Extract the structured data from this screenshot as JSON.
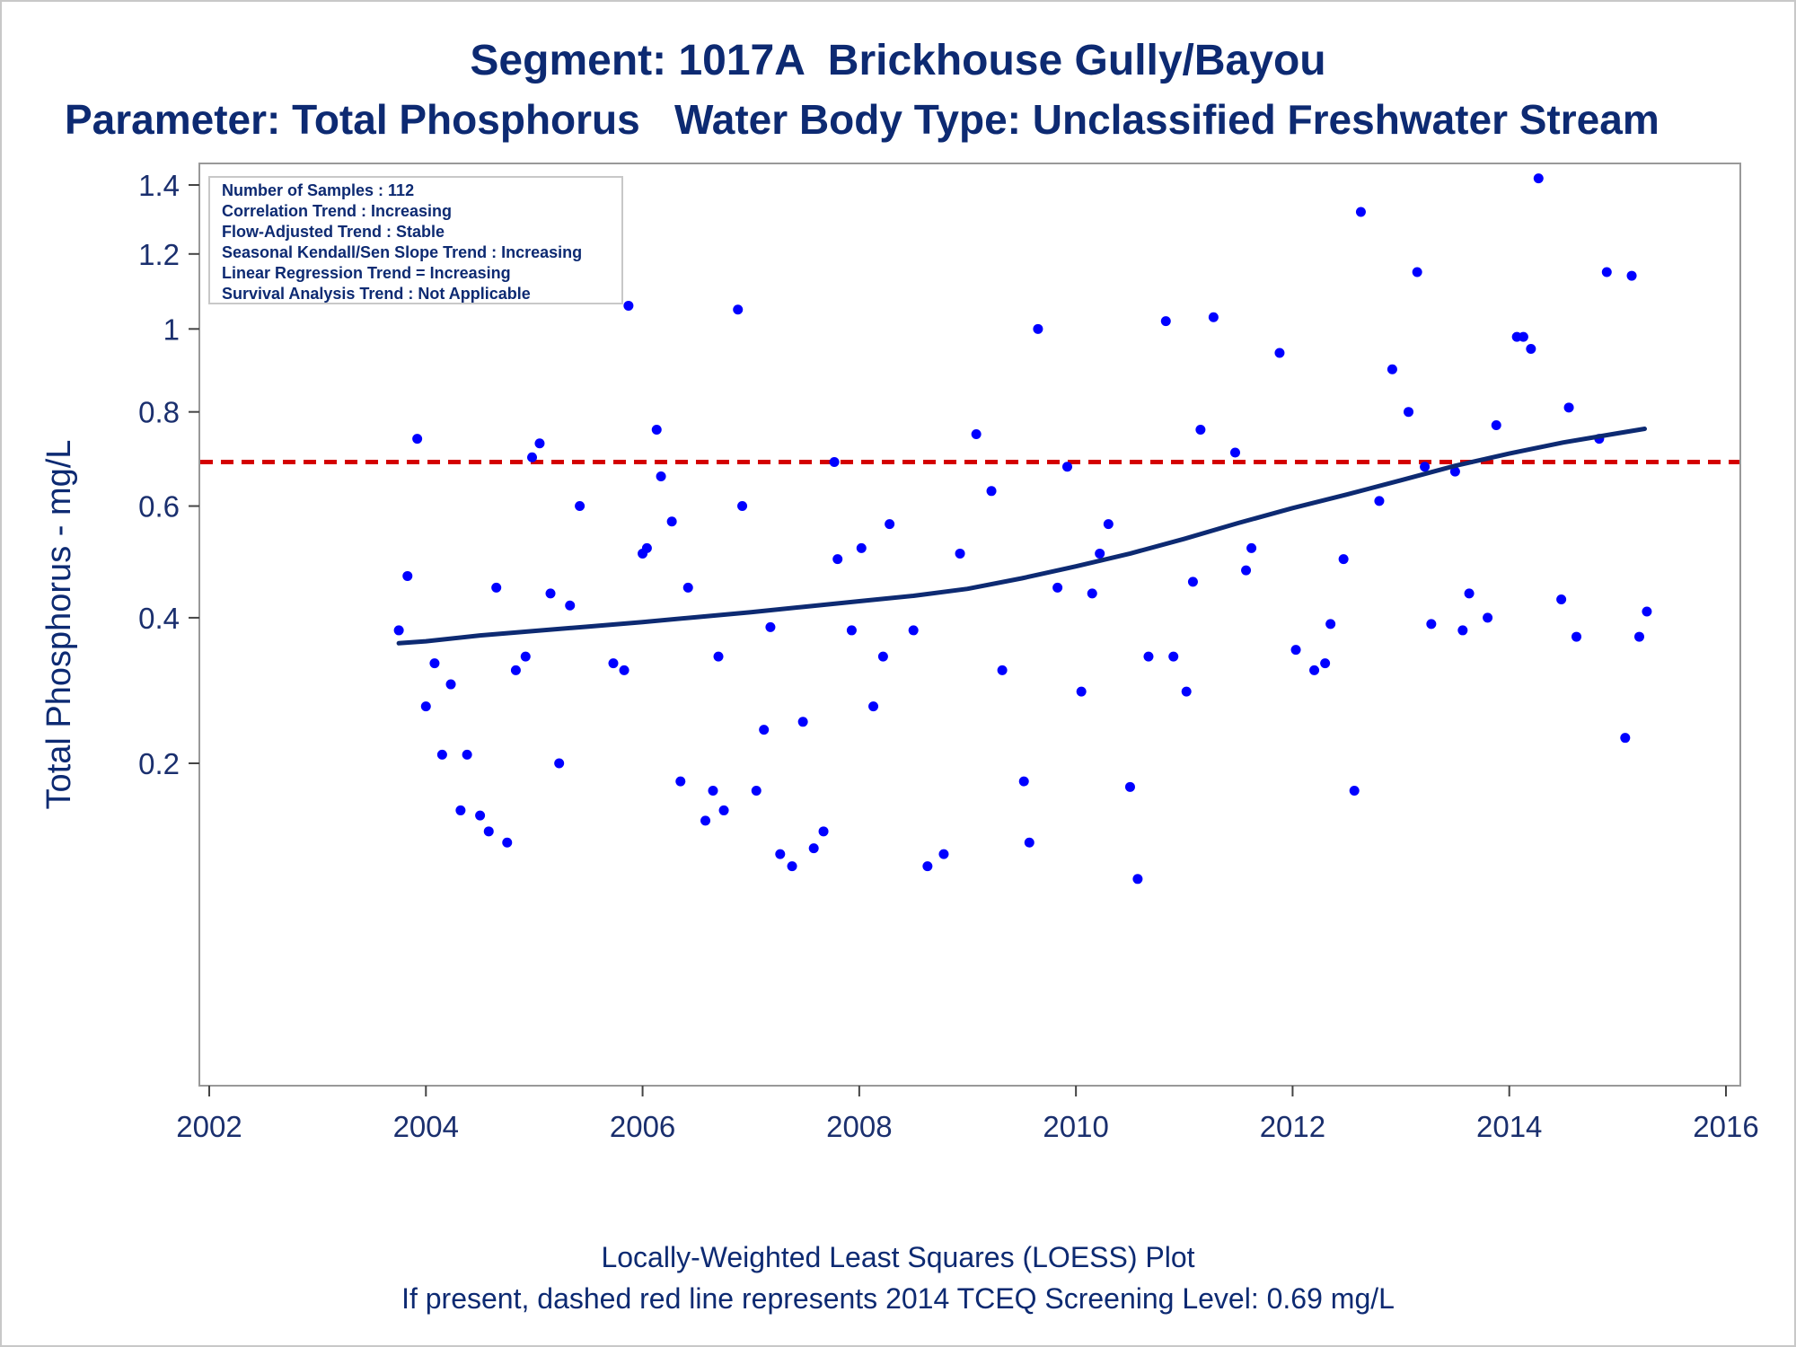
{
  "header": {
    "title": "Segment: 1017A  Brickhouse Gully/Bayou",
    "subtitle": "Parameter: Total Phosphorus   Water Body Type: Unclassified Freshwater Stream"
  },
  "stats_box": {
    "lines": [
      "Number of Samples : 112",
      "Correlation Trend : Increasing",
      "Flow-Adjusted Trend : Stable",
      "Seasonal Kendall/Sen Slope Trend : Increasing",
      "Linear Regression Trend = Increasing",
      "Survival Analysis Trend : Not Applicable"
    ]
  },
  "footer": {
    "line1": "Locally-Weighted Least Squares (LOESS) Plot",
    "line2": "If present, dashed red line represents 2014 TCEQ Screening Level: 0.69 mg/L"
  },
  "colors": {
    "title": "#0d2a72",
    "points": "#0000ff",
    "loess": "#0d2a72",
    "screening": "#d40000",
    "frame": "#999999"
  },
  "chart_data": {
    "type": "scatter",
    "xlabel": "",
    "ylabel": "Total Phosphorus - mg/L",
    "xlim": [
      2002,
      2016
    ],
    "ylim": [
      0.09,
      1.45
    ],
    "y_scale": "sqrt",
    "x_ticks": [
      2002,
      2004,
      2006,
      2008,
      2010,
      2012,
      2014,
      2016
    ],
    "y_ticks": [
      0.2,
      0.4,
      0.6,
      0.8,
      1,
      1.2,
      1.4
    ],
    "y_tick_labels": [
      "0.2",
      "0.4",
      "0.6",
      "0.8",
      "1",
      "1.2",
      "1.4"
    ],
    "reference_line": {
      "y": 0.69,
      "style": "dashed",
      "color": "#d40000"
    },
    "series": [
      {
        "type": "scatter",
        "x": [
          2003.75,
          2003.83,
          2003.92,
          2004.0,
          2004.08,
          2004.15,
          2004.23,
          2004.32,
          2004.38,
          2004.5,
          2004.58,
          2004.65,
          2004.75,
          2004.83,
          2004.92,
          2004.98,
          2005.05,
          2005.15,
          2005.23,
          2005.33,
          2005.42,
          2005.73,
          2005.83,
          2005.87,
          2006.0,
          2006.04,
          2006.13,
          2006.17,
          2006.27,
          2006.35,
          2006.42,
          2006.58,
          2006.65,
          2006.7,
          2006.75,
          2006.88,
          2006.92,
          2007.05,
          2007.12,
          2007.18,
          2007.27,
          2007.38,
          2007.48,
          2007.58,
          2007.67,
          2007.77,
          2007.8,
          2007.93,
          2008.02,
          2008.13,
          2008.22,
          2008.28,
          2008.5,
          2008.63,
          2008.78,
          2008.93,
          2009.08,
          2009.22,
          2009.32,
          2009.52,
          2009.57,
          2009.65,
          2009.83,
          2009.92,
          2010.05,
          2010.15,
          2010.22,
          2010.3,
          2010.5,
          2010.57,
          2010.67,
          2010.83,
          2010.9,
          2011.02,
          2011.08,
          2011.15,
          2011.27,
          2011.47,
          2011.57,
          2011.62,
          2011.88,
          2012.03,
          2012.2,
          2012.3,
          2012.35,
          2012.47,
          2012.57,
          2012.63,
          2012.8,
          2012.92,
          2013.07,
          2013.15,
          2013.22,
          2013.28,
          2013.5,
          2013.57,
          2013.63,
          2013.8,
          2013.88,
          2014.07,
          2014.13,
          2014.2,
          2014.27,
          2014.48,
          2014.55,
          2014.62,
          2014.83,
          2014.9,
          2015.07,
          2015.13,
          2015.2,
          2015.27
        ],
        "y": [
          0.38,
          0.47,
          0.74,
          0.27,
          0.33,
          0.21,
          0.3,
          0.15,
          0.21,
          0.145,
          0.13,
          0.45,
          0.12,
          0.32,
          0.34,
          0.7,
          0.73,
          0.44,
          0.2,
          0.42,
          0.6,
          0.33,
          0.32,
          1.06,
          0.51,
          0.52,
          0.76,
          0.66,
          0.57,
          0.18,
          0.45,
          0.14,
          0.17,
          0.34,
          0.15,
          1.05,
          0.6,
          0.17,
          0.24,
          0.385,
          0.11,
          0.1,
          0.25,
          0.115,
          0.13,
          0.69,
          0.5,
          0.38,
          0.52,
          0.27,
          0.34,
          0.565,
          0.38,
          0.1,
          0.11,
          0.51,
          0.75,
          0.63,
          0.32,
          0.18,
          0.12,
          1.0,
          0.45,
          0.68,
          0.29,
          0.44,
          0.51,
          0.565,
          0.174,
          0.09,
          0.34,
          1.02,
          0.34,
          0.29,
          0.46,
          0.76,
          1.03,
          0.71,
          0.48,
          0.52,
          0.94,
          0.35,
          0.32,
          0.33,
          0.39,
          0.5,
          0.17,
          1.32,
          0.61,
          0.9,
          0.8,
          1.15,
          0.68,
          0.39,
          0.67,
          0.38,
          0.44,
          0.4,
          0.77,
          0.98,
          0.98,
          0.95,
          1.42,
          0.43,
          0.81,
          0.37,
          0.74,
          1.15,
          0.23,
          1.14,
          0.37,
          0.41
        ]
      },
      {
        "type": "line",
        "x": [
          2003.75,
          2004.0,
          2004.5,
          2005.0,
          2005.5,
          2006.0,
          2006.5,
          2007.0,
          2007.5,
          2008.0,
          2008.5,
          2009.0,
          2009.5,
          2010.0,
          2010.5,
          2011.0,
          2011.5,
          2012.0,
          2012.5,
          2013.0,
          2013.5,
          2014.0,
          2014.5,
          2015.0,
          2015.25
        ],
        "y": [
          0.36,
          0.363,
          0.372,
          0.379,
          0.386,
          0.393,
          0.401,
          0.409,
          0.418,
          0.427,
          0.436,
          0.448,
          0.466,
          0.487,
          0.51,
          0.537,
          0.567,
          0.596,
          0.623,
          0.652,
          0.682,
          0.708,
          0.732,
          0.752,
          0.762
        ]
      }
    ]
  }
}
